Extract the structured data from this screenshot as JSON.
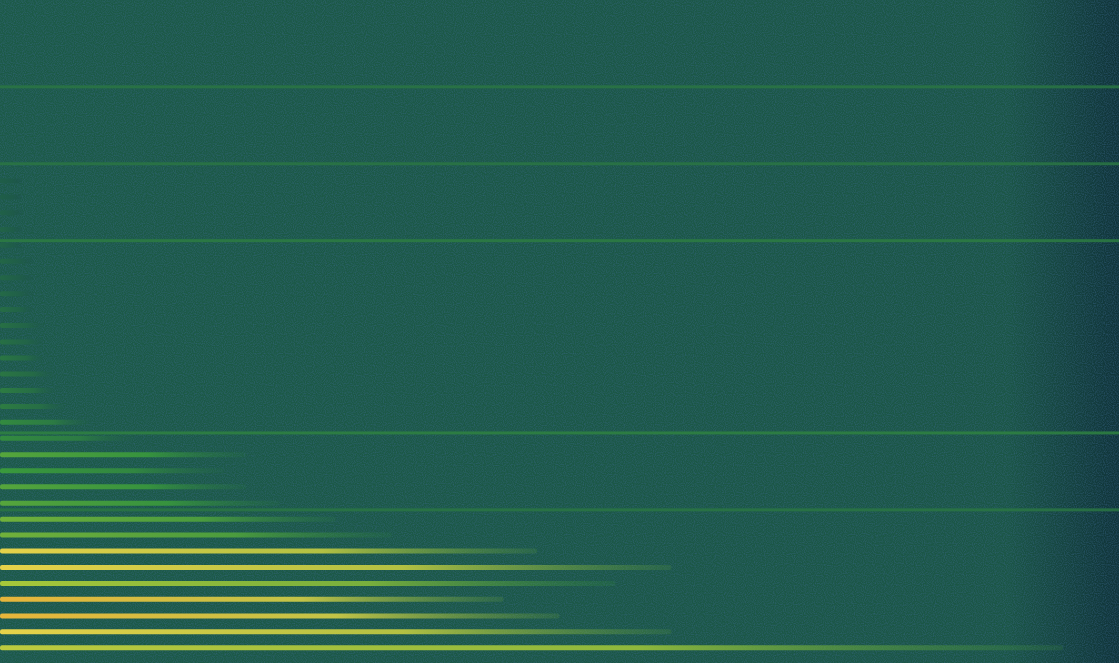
{
  "chart_data": {
    "type": "spectrogram",
    "xlim": [
      0,
      100
    ],
    "ylim": [
      0,
      100
    ],
    "tick_labels": false,
    "zlim": [
      0,
      1
    ],
    "partials": {
      "frequency": [
        2.3,
        4.7,
        7.1,
        9.6,
        12.0,
        14.4,
        16.9,
        19.3,
        21.7,
        24.1,
        26.6,
        29.0,
        31.4,
        33.9,
        36.3,
        38.7,
        41.1,
        43.6,
        46.0,
        48.4,
        50.9,
        53.3,
        55.7,
        58.1,
        60.6,
        63.0,
        65.4,
        67.9,
        70.3,
        72.7
      ],
      "end": [
        95,
        60,
        50,
        45,
        55,
        60,
        48,
        35,
        30,
        25,
        22,
        20,
        22,
        12,
        8,
        6,
        5,
        5,
        4,
        4,
        4,
        3,
        3,
        3,
        3,
        2,
        2,
        2,
        2,
        2
      ],
      "level": [
        0.75,
        0.85,
        0.9,
        0.9,
        0.7,
        0.85,
        0.85,
        0.6,
        0.6,
        0.55,
        0.55,
        0.5,
        0.55,
        0.45,
        0.45,
        0.4,
        0.4,
        0.38,
        0.38,
        0.36,
        0.36,
        0.35,
        0.34,
        0.33,
        0.33,
        0.32,
        0.32,
        0.31,
        0.3,
        0.3
      ]
    },
    "tones": {
      "frequency": [
        23.1,
        34.7,
        63.7,
        75.3,
        86.9
      ],
      "level": [
        0.38,
        0.42,
        0.4,
        0.38,
        0.38
      ]
    }
  }
}
